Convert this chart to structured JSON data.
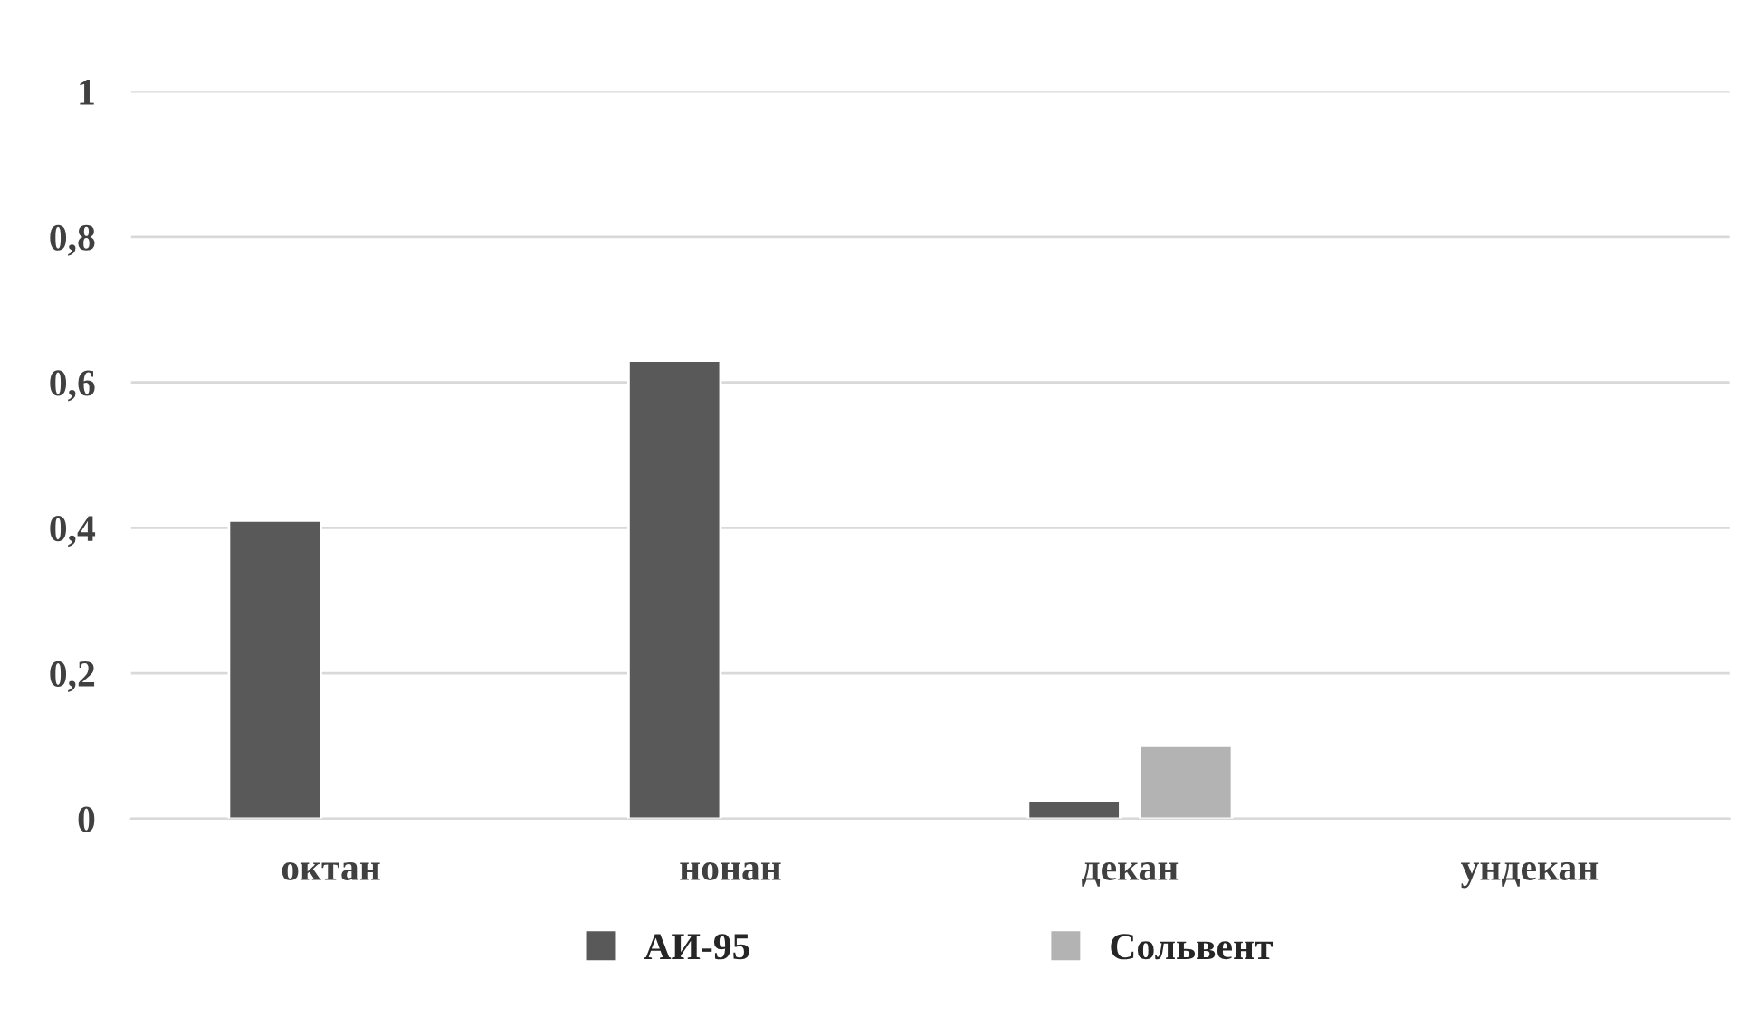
{
  "chart_data": {
    "type": "bar",
    "categories": [
      "октан",
      "нонан",
      "декан",
      "ундекан"
    ],
    "series": [
      {
        "name": "АИ-95",
        "color": "#595959",
        "values": [
          0.41,
          0.63,
          0.025,
          null
        ]
      },
      {
        "name": "Сольвент",
        "color": "#b3b3b3",
        "values": [
          null,
          null,
          0.1,
          null
        ]
      }
    ],
    "ylim": [
      0,
      1
    ],
    "yticks": [
      0,
      {
        "value": 0.2,
        "label": "0,2"
      },
      {
        "value": 0.4,
        "label": "0,4"
      },
      {
        "value": 0.6,
        "label": "0,6"
      },
      {
        "value": 0.8,
        "label": "0,8"
      },
      1
    ],
    "grid": "y",
    "legend": "bottom"
  }
}
